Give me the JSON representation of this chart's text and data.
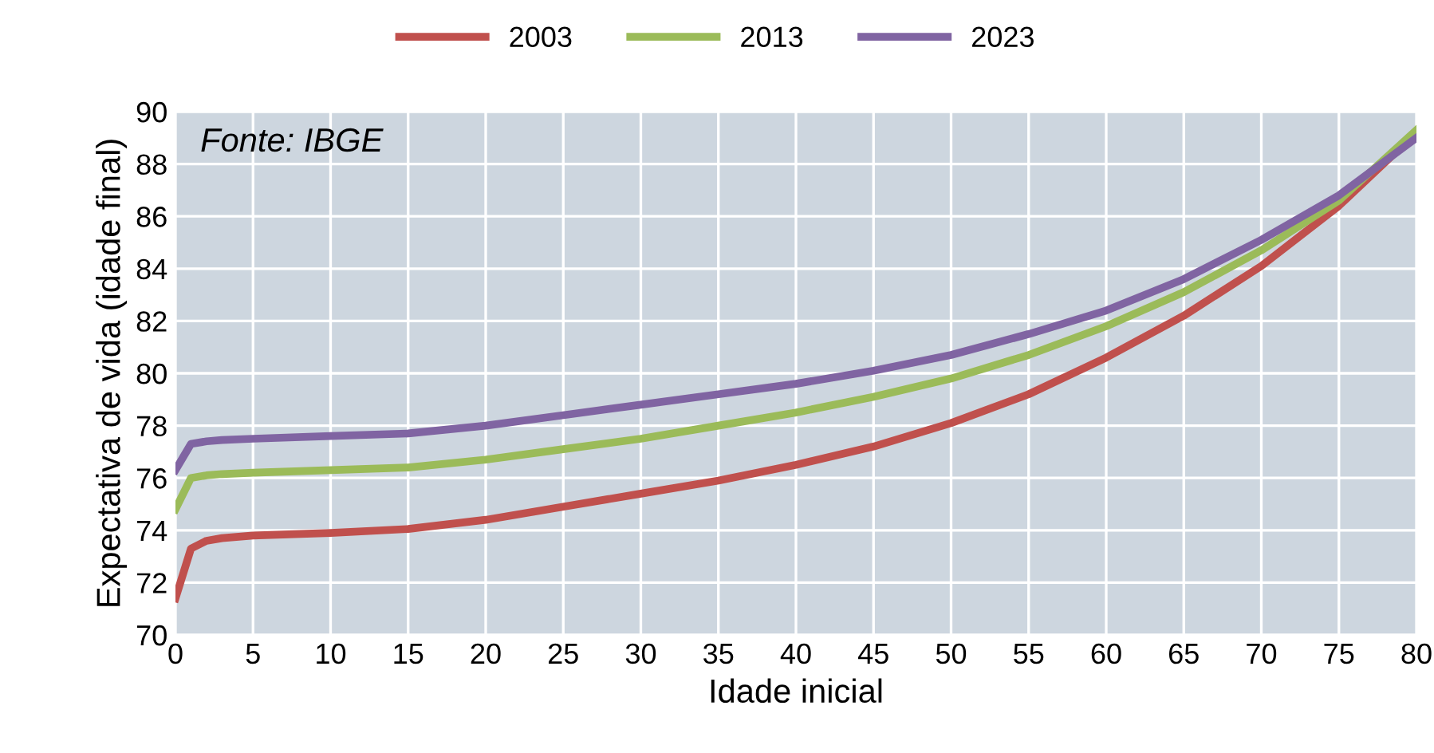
{
  "chart_data": {
    "type": "line",
    "xlabel": "Idade inicial",
    "ylabel": "Expectativa de vida (idade final)",
    "annotations": [
      "Fonte: IBGE"
    ],
    "x": [
      0,
      1,
      2,
      3,
      5,
      10,
      15,
      20,
      25,
      30,
      35,
      40,
      45,
      50,
      55,
      60,
      65,
      70,
      75,
      80
    ],
    "series": [
      {
        "name": "2003",
        "color": "#c0504d",
        "values": [
          71.4,
          73.3,
          73.6,
          73.7,
          73.8,
          73.9,
          74.05,
          74.4,
          74.9,
          75.4,
          75.9,
          76.5,
          77.2,
          78.1,
          79.2,
          80.6,
          82.2,
          84.1,
          86.4,
          89.2
        ]
      },
      {
        "name": "2013",
        "color": "#9bbb59",
        "values": [
          74.8,
          76.0,
          76.1,
          76.15,
          76.2,
          76.3,
          76.4,
          76.7,
          77.1,
          77.5,
          78.0,
          78.5,
          79.1,
          79.8,
          80.7,
          81.8,
          83.1,
          84.7,
          86.6,
          89.3
        ]
      },
      {
        "name": "2023",
        "color": "#8064a2",
        "values": [
          76.3,
          77.3,
          77.4,
          77.45,
          77.5,
          77.6,
          77.7,
          78.0,
          78.4,
          78.8,
          79.2,
          79.6,
          80.1,
          80.7,
          81.5,
          82.4,
          83.6,
          85.1,
          86.8,
          89.0
        ]
      }
    ],
    "xlim": [
      0,
      80
    ],
    "xticks": [
      0,
      5,
      10,
      15,
      20,
      25,
      30,
      35,
      40,
      45,
      50,
      55,
      60,
      65,
      70,
      75,
      80
    ],
    "ylim": [
      70,
      90
    ],
    "yticks": [
      70,
      72,
      74,
      76,
      78,
      80,
      82,
      84,
      86,
      88,
      90
    ],
    "grid": true,
    "legend": "top",
    "marker": "none",
    "line_style": "solid"
  }
}
